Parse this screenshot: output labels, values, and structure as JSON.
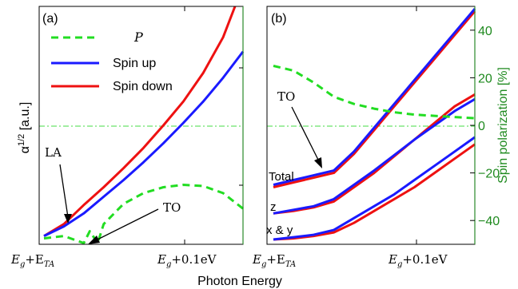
{
  "chart_data": [
    {
      "panel_label": "(a)",
      "type": "line",
      "xlabel": "",
      "ylabel": "α^{1/2} [a.u.]",
      "ylabel_main": "α",
      "ylabel_sup": "1/2",
      "ylabel_unit": " [a.u.]",
      "xlim": [
        0,
        1
      ],
      "ylim": [
        0,
        1
      ],
      "x_tick_labels": [
        {
          "x": 0.0,
          "main": "E",
          "sub": "g",
          "mid": "+E",
          "sub2": "TA"
        },
        {
          "x": 0.72,
          "main": "E",
          "sub": "g",
          "mid": "+0.1eV",
          "sub2": ""
        }
      ],
      "legend": [
        {
          "label": "P",
          "italic": true,
          "color": "#22dd22",
          "dash": true
        },
        {
          "label": "Spin up",
          "italic": false,
          "color": "#1a1aff",
          "dash": false
        },
        {
          "label": "Spin down",
          "italic": false,
          "color": "#ee1111",
          "dash": false
        }
      ],
      "series": [
        {
          "name": "Spin down",
          "color": "#ee1111",
          "x": [
            0.0,
            0.1,
            0.2,
            0.3,
            0.4,
            0.5,
            0.6,
            0.7,
            0.8,
            0.9,
            0.96
          ],
          "y": [
            0.035,
            0.085,
            0.165,
            0.24,
            0.32,
            0.405,
            0.5,
            0.6,
            0.72,
            0.87,
            1.0
          ]
        },
        {
          "name": "Spin up",
          "color": "#1a1aff",
          "x": [
            0.0,
            0.1,
            0.2,
            0.3,
            0.4,
            0.5,
            0.6,
            0.7,
            0.8,
            0.9,
            1.0
          ],
          "y": [
            0.035,
            0.075,
            0.13,
            0.2,
            0.27,
            0.345,
            0.425,
            0.51,
            0.6,
            0.7,
            0.81
          ]
        },
        {
          "name": "P",
          "color": "#22dd22",
          "dash": true,
          "x": [
            0.0,
            0.1,
            0.2,
            0.23,
            0.27,
            0.3,
            0.4,
            0.5,
            0.6,
            0.7,
            0.8,
            0.9,
            1.0
          ],
          "y": [
            0.025,
            0.035,
            0.005,
            0.055,
            0.005,
            0.085,
            0.17,
            0.215,
            0.24,
            0.25,
            0.245,
            0.215,
            0.15
          ]
        }
      ],
      "annotations": [
        {
          "text": "LA",
          "x": 0.1,
          "y": 0.44,
          "arrow_to": [
            0.115,
            0.08
          ]
        },
        {
          "text": "TO",
          "x": 0.6,
          "y": 0.14,
          "arrow_to": [
            0.24,
            0.005
          ]
        }
      ],
      "hline_y": 0.5
    },
    {
      "panel_label": "(b)",
      "type": "line",
      "xlabel": "Photon Energy",
      "ylabel": "Spin polarization [%]",
      "xlim": [
        0,
        1
      ],
      "ylim": [
        -50,
        50
      ],
      "y2_ticks": [
        -40,
        -20,
        0,
        20,
        40
      ],
      "x_tick_labels": [
        {
          "x": 0.0,
          "main": "E",
          "sub": "g",
          "mid": "+E",
          "sub2": "TA"
        },
        {
          "x": 0.72,
          "main": "E",
          "sub": "g",
          "mid": "+0.1eV",
          "sub2": ""
        }
      ],
      "series": [
        {
          "name": "Total spin down",
          "color": "#ee1111",
          "x": [
            0.0,
            0.1,
            0.2,
            0.3,
            0.4,
            0.5,
            0.6,
            0.7,
            0.8,
            0.9,
            1.0
          ],
          "y": [
            -26,
            -24,
            -22,
            -20,
            -12,
            -2,
            8,
            18,
            28,
            38,
            48
          ]
        },
        {
          "name": "Total spin up",
          "color": "#1a1aff",
          "x": [
            0.0,
            0.1,
            0.2,
            0.3,
            0.4,
            0.5,
            0.6,
            0.7,
            0.8,
            0.9,
            1.0
          ],
          "y": [
            -25,
            -23,
            -21,
            -19,
            -11,
            -1,
            9,
            19,
            29,
            39,
            49
          ]
        },
        {
          "name": "z spin down",
          "color": "#ee1111",
          "x": [
            0.0,
            0.1,
            0.2,
            0.3,
            0.4,
            0.5,
            0.6,
            0.7,
            0.8,
            0.9,
            1.0
          ],
          "y": [
            -37,
            -36,
            -34.5,
            -32,
            -26,
            -20,
            -13,
            -6,
            1,
            8,
            13
          ]
        },
        {
          "name": "z spin up",
          "color": "#1a1aff",
          "x": [
            0.0,
            0.1,
            0.2,
            0.3,
            0.4,
            0.5,
            0.6,
            0.7,
            0.8,
            0.9,
            1.0
          ],
          "y": [
            -37,
            -35.5,
            -34,
            -31,
            -25,
            -19,
            -12.5,
            -6,
            0,
            6,
            11
          ]
        },
        {
          "name": "x & y spin down",
          "color": "#ee1111",
          "x": [
            0.0,
            0.1,
            0.2,
            0.3,
            0.4,
            0.5,
            0.6,
            0.7,
            0.8,
            0.9,
            1.0
          ],
          "y": [
            -48,
            -47.5,
            -46.5,
            -45,
            -41,
            -36,
            -31,
            -26,
            -20,
            -14,
            -8
          ]
        },
        {
          "name": "x & y spin up",
          "color": "#1a1aff",
          "x": [
            0.0,
            0.1,
            0.2,
            0.3,
            0.4,
            0.5,
            0.6,
            0.7,
            0.8,
            0.9,
            1.0
          ],
          "y": [
            -48,
            -47,
            -46,
            -44,
            -39,
            -34,
            -29,
            -23,
            -17,
            -11,
            -5
          ]
        },
        {
          "name": "Spin polarization",
          "color": "#22dd22",
          "dash": true,
          "x": [
            0.0,
            0.1,
            0.2,
            0.3,
            0.4,
            0.5,
            0.6,
            0.7,
            0.8,
            0.9,
            1.0
          ],
          "y": [
            25,
            23,
            18,
            12,
            9,
            7,
            5.5,
            4.5,
            4,
            3.5,
            3
          ]
        }
      ],
      "curve_labels": [
        {
          "text": "Total",
          "x": 0.0,
          "y": -21
        },
        {
          "text": "z",
          "x": 0.0,
          "y": -33
        },
        {
          "text": "x & y",
          "x": 0.0,
          "y": -44
        }
      ],
      "annotations": [
        {
          "text": "TO",
          "x": 0.12,
          "y": 13,
          "arrow_to": [
            0.3,
            -18.5
          ]
        }
      ],
      "hline_y": 0
    }
  ]
}
